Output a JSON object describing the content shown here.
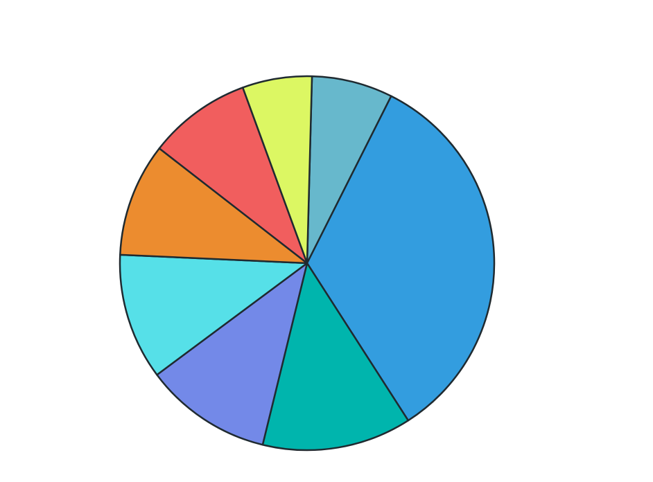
{
  "chart_data": {
    "type": "pie",
    "values": [
      7,
      33.5,
      12.9,
      11,
      10.9,
      9.8,
      8.9,
      6
    ],
    "colors": [
      "#67b8cc",
      "#339ddf",
      "#00b5ad",
      "#7389e8",
      "#56e0e8",
      "#ec8c2f",
      "#f15e5e",
      "#dcf763"
    ]
  }
}
